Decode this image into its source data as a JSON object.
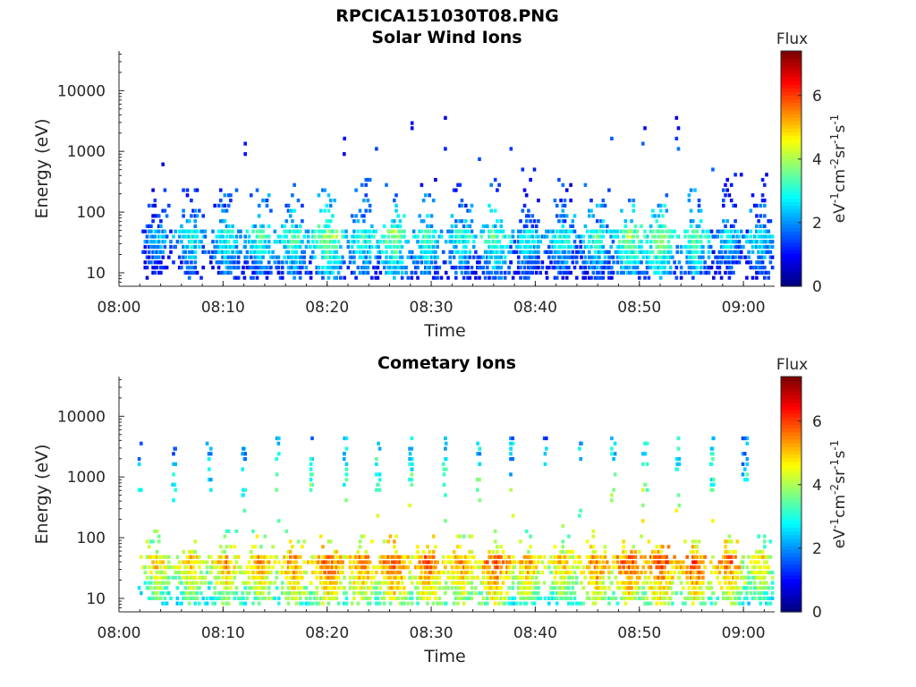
{
  "figure_title": "RPCICA151030T08.PNG",
  "colorbar": {
    "label": "Flux",
    "unit_base": "eV",
    "unit_parts": [
      {
        "t": "eV",
        "sup": "-1"
      },
      {
        "t": "cm",
        "sup": "-2"
      },
      {
        "t": "sr",
        "sup": "-1"
      },
      {
        "t": "s",
        "sup": "-1"
      }
    ],
    "range": [
      0,
      7.4
    ],
    "ticks": [
      "0",
      "2",
      "4",
      "6"
    ],
    "colormap": "jet"
  },
  "chart_data": [
    {
      "type": "heatmap",
      "title": "Solar Wind Ions",
      "xlabel": "Time",
      "ylabel": "Energy (eV)",
      "x_tick_labels": [
        "08:00",
        "08:10",
        "08:20",
        "08:30",
        "08:40",
        "08:50",
        "09:00"
      ],
      "y_tick_labels": [
        "10",
        "100",
        "1000",
        "10000"
      ],
      "xlim": [
        "08:00",
        "09:03"
      ],
      "ylim": [
        6,
        45000
      ],
      "y_scale": "log",
      "z_range": [
        0,
        7.4
      ],
      "bursts": [
        {
          "t": "08:03.5",
          "peak": 3.2
        },
        {
          "t": "08:06.8",
          "peak": 3.6
        },
        {
          "t": "08:10.2",
          "peak": 3.8
        },
        {
          "t": "08:13.5",
          "peak": 4.0
        },
        {
          "t": "08:16.7",
          "peak": 4.1
        },
        {
          "t": "08:20.0",
          "peak": 4.6
        },
        {
          "t": "08:23.2",
          "peak": 3.9
        },
        {
          "t": "08:26.3",
          "peak": 4.5
        },
        {
          "t": "08:29.5",
          "peak": 4.0
        },
        {
          "t": "08:32.8",
          "peak": 3.8
        },
        {
          "t": "08:36.0",
          "peak": 4.2
        },
        {
          "t": "08:39.2",
          "peak": 3.6
        },
        {
          "t": "08:42.5",
          "peak": 3.7
        },
        {
          "t": "08:45.8",
          "peak": 3.9
        },
        {
          "t": "08:48.9",
          "peak": 4.5
        },
        {
          "t": "08:51.9",
          "peak": 4.6
        },
        {
          "t": "08:55.2",
          "peak": 4.2
        },
        {
          "t": "08:58.5",
          "peak": 3.4
        },
        {
          "t": "09:01.5",
          "peak": 3.6
        }
      ]
    },
    {
      "type": "heatmap",
      "title": "Cometary Ions",
      "xlabel": "Time",
      "ylabel": "Energy (eV)",
      "x_tick_labels": [
        "08:00",
        "08:10",
        "08:20",
        "08:30",
        "08:40",
        "08:50",
        "09:00"
      ],
      "y_tick_labels": [
        "10",
        "100",
        "1000",
        "10000"
      ],
      "xlim": [
        "08:00",
        "09:03"
      ],
      "ylim": [
        6,
        45000
      ],
      "y_scale": "log",
      "z_range": [
        0,
        7.4
      ],
      "bursts": [
        {
          "t": "08:03.5",
          "peak": 5.6
        },
        {
          "t": "08:06.8",
          "peak": 5.8
        },
        {
          "t": "08:10.2",
          "peak": 6.0
        },
        {
          "t": "08:13.5",
          "peak": 6.1
        },
        {
          "t": "08:16.7",
          "peak": 6.2
        },
        {
          "t": "08:20.0",
          "peak": 6.5
        },
        {
          "t": "08:23.2",
          "peak": 6.3
        },
        {
          "t": "08:26.3",
          "peak": 6.6
        },
        {
          "t": "08:29.5",
          "peak": 6.5
        },
        {
          "t": "08:32.8",
          "peak": 6.2
        },
        {
          "t": "08:36.0",
          "peak": 6.6
        },
        {
          "t": "08:39.2",
          "peak": 6.0
        },
        {
          "t": "08:42.5",
          "peak": 5.8
        },
        {
          "t": "08:45.8",
          "peak": 6.3
        },
        {
          "t": "08:48.9",
          "peak": 6.6
        },
        {
          "t": "08:51.9",
          "peak": 6.7
        },
        {
          "t": "08:55.2",
          "peak": 6.6
        },
        {
          "t": "08:58.5",
          "peak": 6.4
        },
        {
          "t": "09:01.5",
          "peak": 5.6
        }
      ]
    }
  ]
}
